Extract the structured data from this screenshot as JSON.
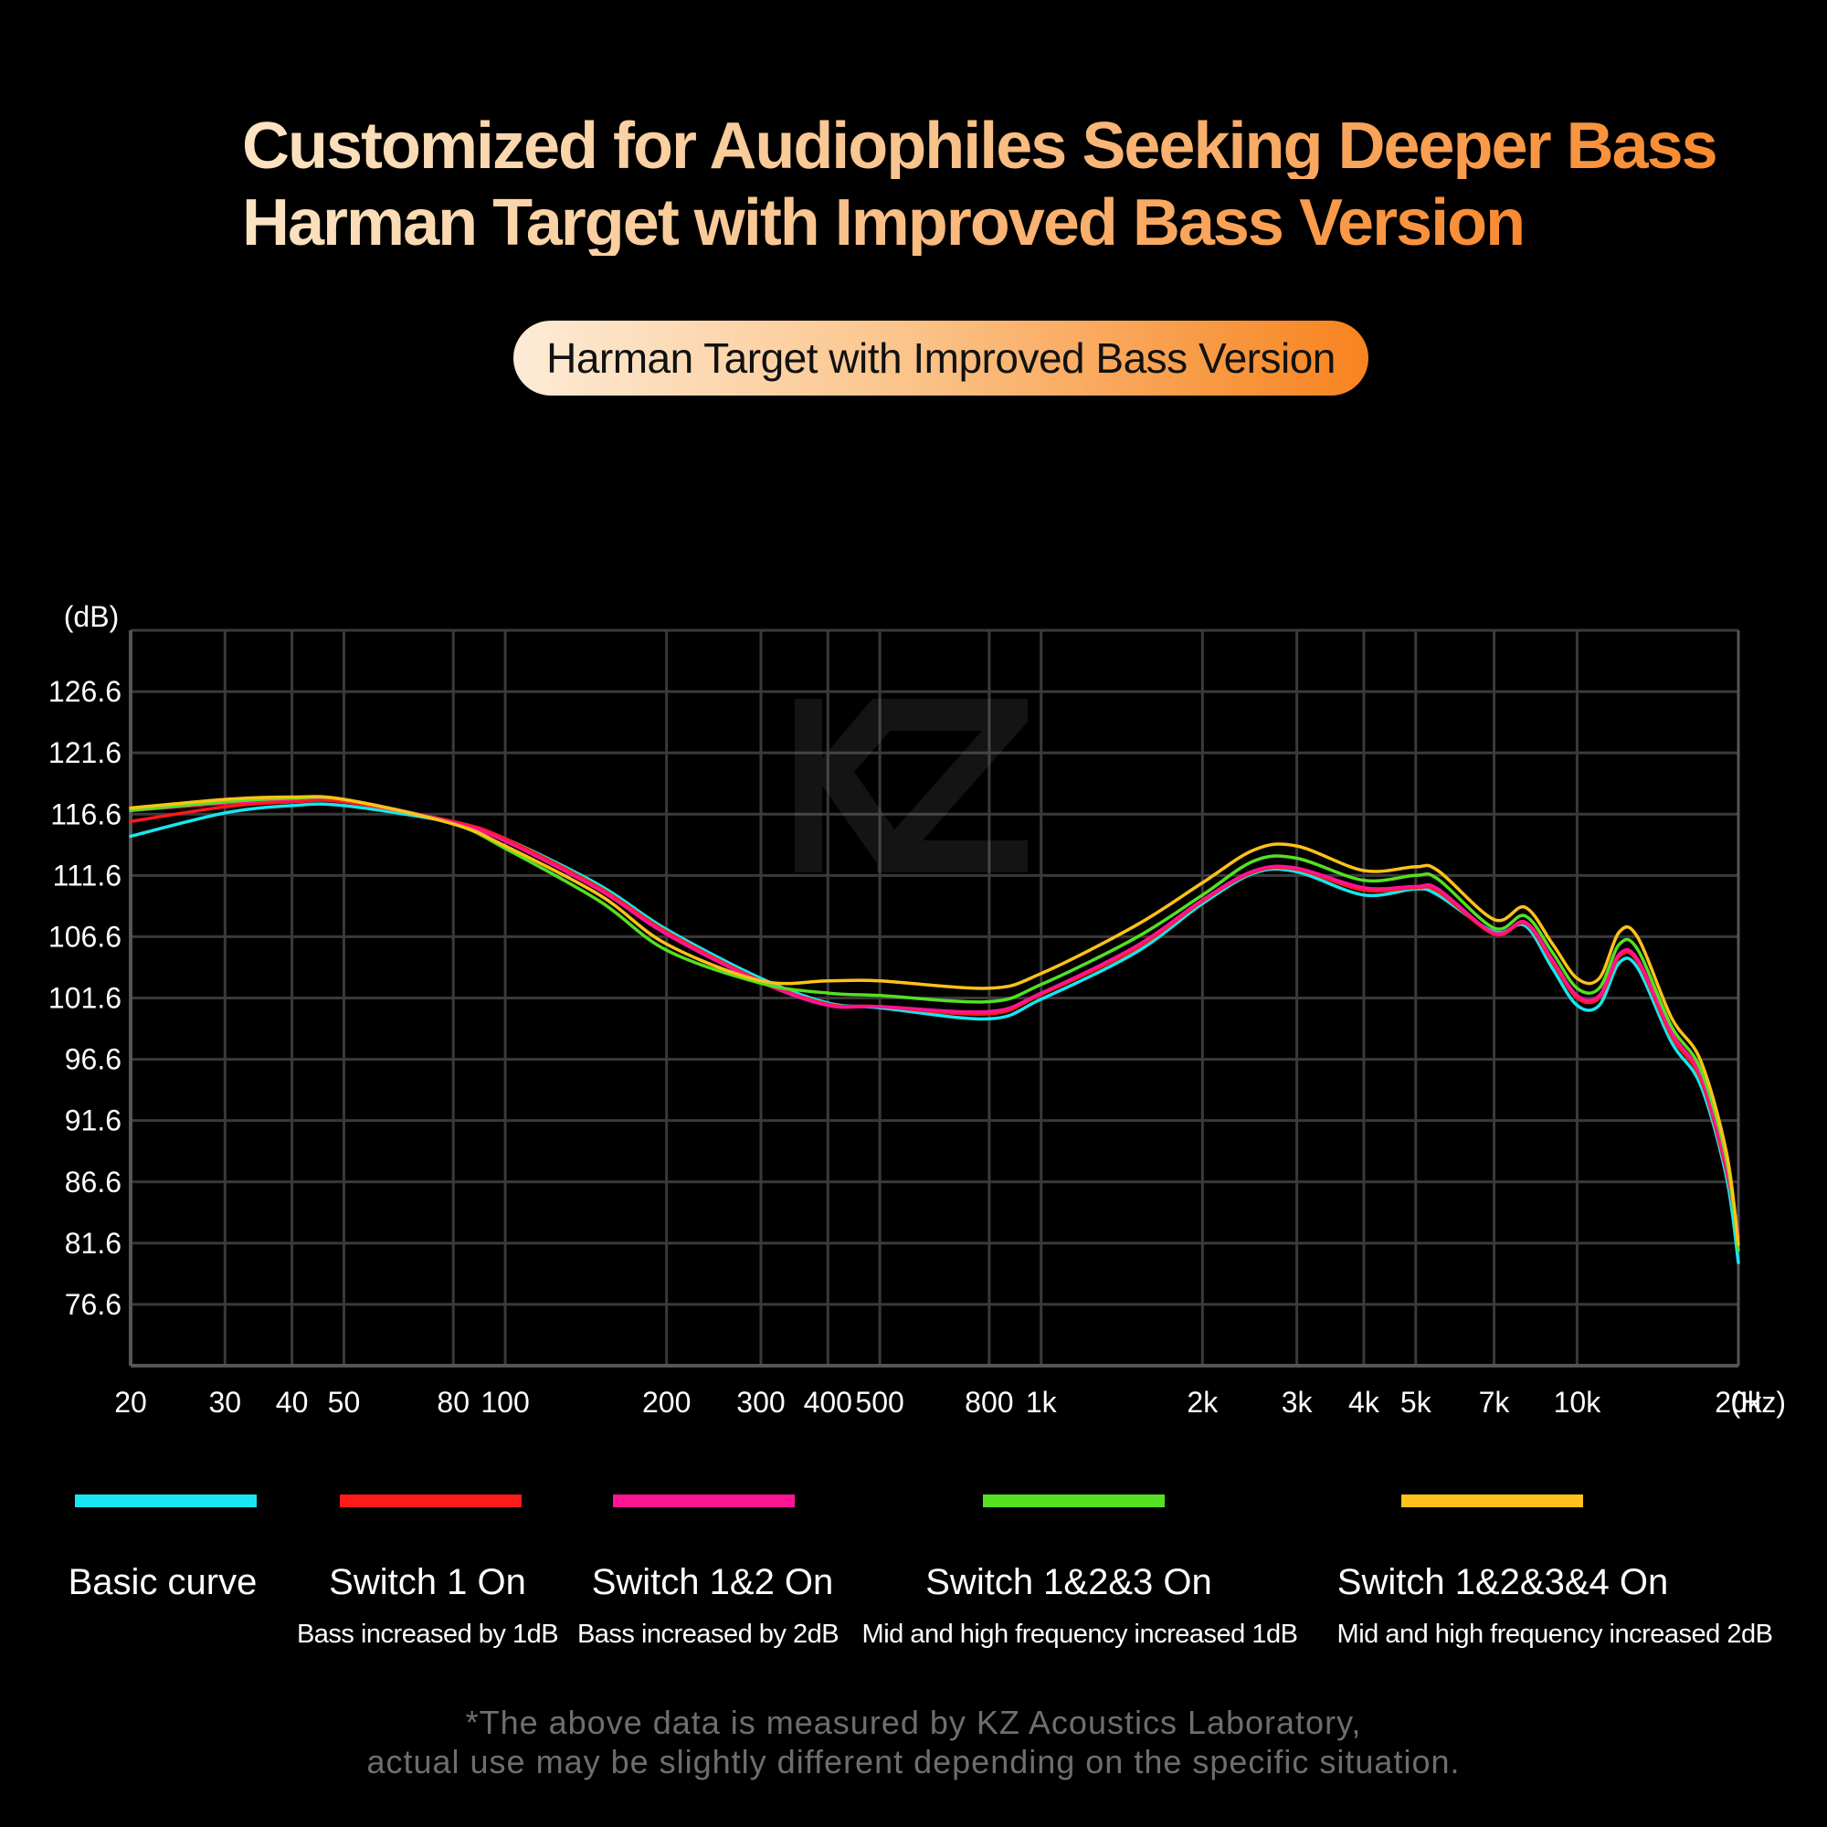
{
  "header": {
    "title_line1": "Customized for Audiophiles Seeking Deeper Bass",
    "title_line2": "Harman Target with Improved Bass Version",
    "pill_label": "Harman Target with Improved Bass Version"
  },
  "chart_data": {
    "type": "line",
    "xscale": "log",
    "xlim": [
      20,
      20000
    ],
    "ylim": [
      71.6,
      131.6
    ],
    "ylabel": "(dB)",
    "xunit": "(Hz)",
    "grid": true,
    "yticks": [
      126.6,
      121.6,
      116.6,
      111.6,
      106.6,
      101.6,
      96.6,
      91.6,
      86.6,
      81.6,
      76.6
    ],
    "xticks": [
      {
        "value": 20,
        "label": "20"
      },
      {
        "value": 30,
        "label": "30"
      },
      {
        "value": 40,
        "label": "40"
      },
      {
        "value": 50,
        "label": "50"
      },
      {
        "value": 80,
        "label": "80"
      },
      {
        "value": 100,
        "label": "100"
      },
      {
        "value": 200,
        "label": "200"
      },
      {
        "value": 300,
        "label": "300"
      },
      {
        "value": 400,
        "label": "400"
      },
      {
        "value": 500,
        "label": "500"
      },
      {
        "value": 800,
        "label": "800"
      },
      {
        "value": 1000,
        "label": "1k"
      },
      {
        "value": 2000,
        "label": "2k"
      },
      {
        "value": 3000,
        "label": "3k"
      },
      {
        "value": 4000,
        "label": "4k"
      },
      {
        "value": 5000,
        "label": "5k"
      },
      {
        "value": 7000,
        "label": "7k"
      },
      {
        "value": 10000,
        "label": "10k"
      },
      {
        "value": 20000,
        "label": "20k"
      }
    ],
    "x": [
      20,
      30,
      40,
      50,
      80,
      100,
      150,
      200,
      300,
      400,
      500,
      800,
      1000,
      1500,
      2000,
      2500,
      3000,
      4000,
      5000,
      5500,
      7000,
      8000,
      9000,
      10000,
      11000,
      12000,
      13000,
      15000,
      17000,
      19000,
      20000
    ],
    "series": [
      {
        "name": "Basic curve",
        "color": "#18e6f0",
        "values": [
          114.8,
          116.7,
          117.3,
          117.3,
          115.9,
          114.6,
          110.8,
          107.2,
          103.2,
          101.2,
          100.8,
          99.9,
          101.5,
          105.3,
          109.3,
          111.8,
          111.9,
          110.0,
          110.5,
          110.0,
          107.0,
          107.5,
          104.0,
          101.0,
          101.0,
          104.5,
          104.0,
          98.0,
          94.5,
          87.0,
          80.0
        ]
      },
      {
        "name": "Switch 1 On",
        "color": "#ff1a1a",
        "values": [
          116.0,
          117.2,
          117.6,
          117.6,
          116.0,
          114.6,
          110.6,
          107.0,
          103.0,
          101.1,
          100.9,
          100.3,
          101.9,
          105.6,
          109.5,
          111.9,
          112.1,
          110.4,
          110.6,
          110.3,
          106.8,
          107.7,
          104.5,
          101.6,
          101.6,
          105.0,
          104.5,
          98.5,
          95.0,
          87.5,
          82.0
        ]
      },
      {
        "name": "Switch 1&2 On",
        "color": "#ff1493",
        "values": [
          116.9,
          117.5,
          117.8,
          117.8,
          115.9,
          114.4,
          110.4,
          106.8,
          102.9,
          101.0,
          100.9,
          100.5,
          102.0,
          105.8,
          109.6,
          112.0,
          112.2,
          110.6,
          110.7,
          110.5,
          106.9,
          107.8,
          104.7,
          101.8,
          101.8,
          105.2,
          104.7,
          98.8,
          95.3,
          87.8,
          82.2
        ]
      },
      {
        "name": "Switch 1&2&3 On",
        "color": "#55e022",
        "values": [
          116.9,
          117.6,
          117.9,
          117.8,
          115.8,
          113.8,
          109.5,
          105.5,
          102.8,
          102.0,
          101.8,
          101.3,
          102.7,
          106.5,
          110.0,
          112.8,
          113.0,
          111.2,
          111.6,
          111.3,
          107.3,
          108.3,
          105.3,
          102.4,
          102.4,
          106.0,
          105.5,
          99.3,
          95.8,
          88.5,
          81.0
        ]
      },
      {
        "name": "Switch 1&2&3&4 On",
        "color": "#ffc21a",
        "values": [
          117.1,
          117.8,
          118.0,
          117.8,
          115.8,
          114.0,
          110.0,
          106.0,
          103.0,
          103.0,
          103.0,
          102.4,
          103.6,
          107.5,
          111.0,
          113.7,
          114.0,
          112.0,
          112.3,
          112.0,
          108.0,
          109.0,
          106.0,
          103.2,
          103.2,
          107.0,
          106.5,
          100.0,
          96.5,
          89.0,
          81.5
        ]
      }
    ]
  },
  "legend": [
    {
      "label": "Basic curve",
      "sub": "",
      "color": "#18e6f0"
    },
    {
      "label": "Switch 1 On",
      "sub": "Bass increased by 1dB",
      "color": "#ff1a1a"
    },
    {
      "label": "Switch 1&2 On",
      "sub": "Bass increased by 2dB",
      "color": "#ff1493"
    },
    {
      "label": "Switch 1&2&3 On",
      "sub": "Mid and high frequency increased 1dB",
      "color": "#55e022"
    },
    {
      "label": "Switch 1&2&3&4 On",
      "sub": "Mid and high frequency increased 2dB",
      "color": "#ffc21a"
    }
  ],
  "footnote": {
    "line1": "*The above data is measured by KZ Acoustics Laboratory,",
    "line2": "actual use may be slightly different depending on the specific situation."
  },
  "watermark": "kz-logo"
}
